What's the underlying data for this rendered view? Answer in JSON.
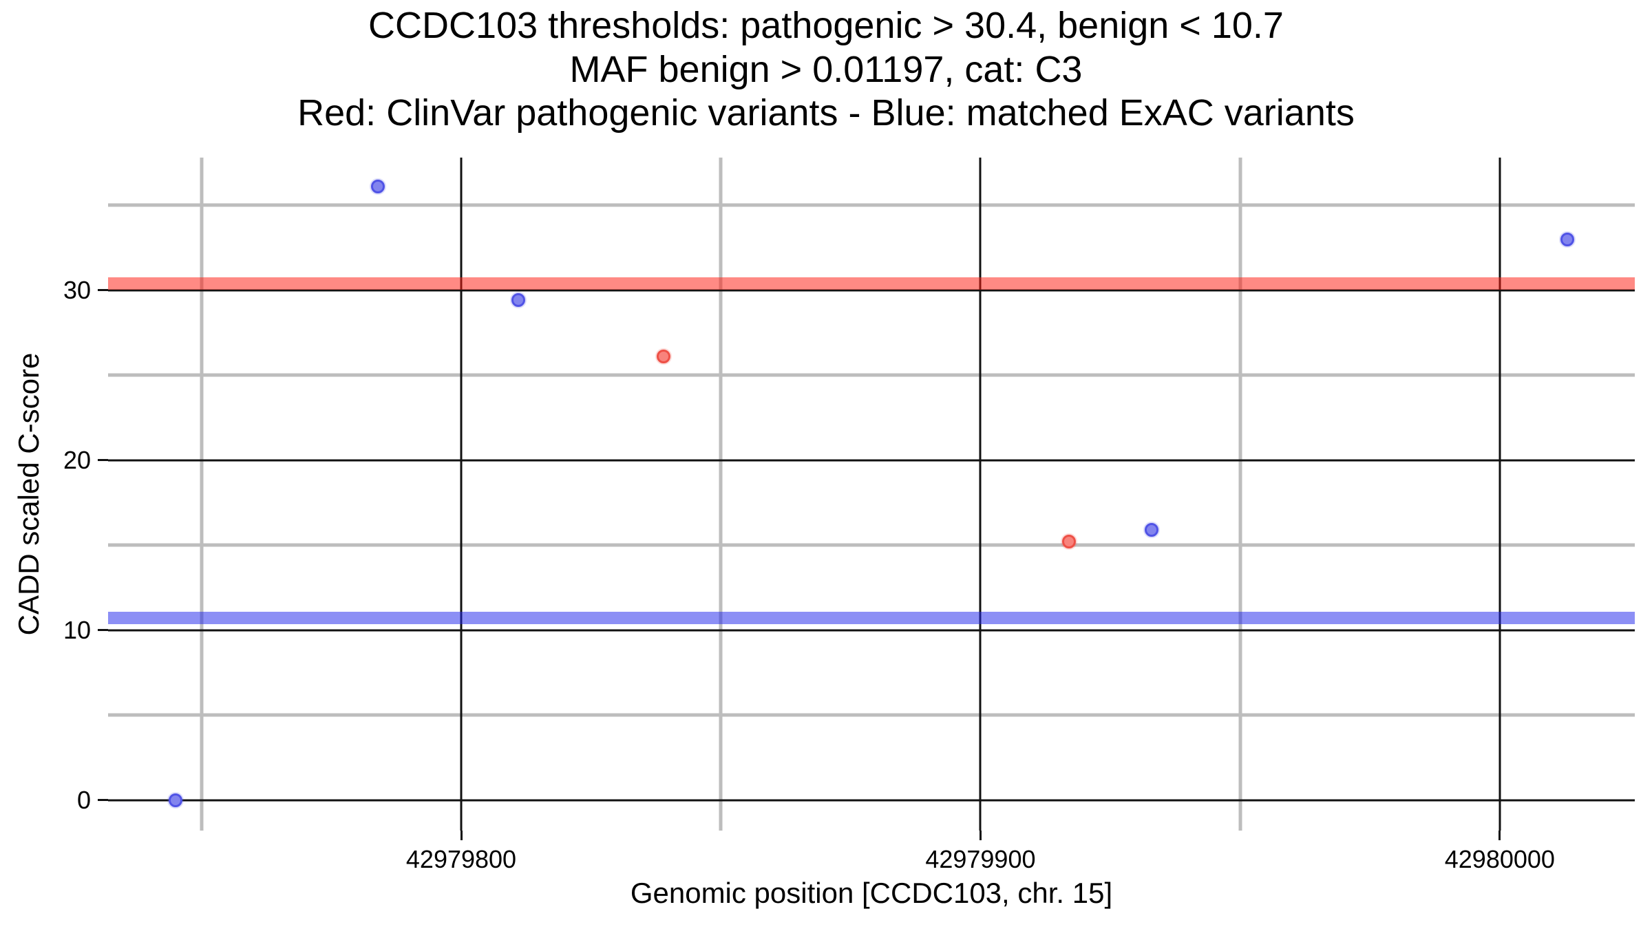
{
  "title": {
    "line1": "CCDC103 thresholds: pathogenic > 30.4, benign < 10.7",
    "line2": "MAF benign > 0.01197, cat: C3",
    "line3": "Red: ClinVar pathogenic variants - Blue: matched ExAC variants"
  },
  "axes": {
    "x_title": "Genomic position [CCDC103, chr. 15]",
    "y_title": "CADD scaled C-score"
  },
  "chart_data": {
    "type": "scatter",
    "title": "CCDC103 thresholds: pathogenic > 30.4, benign < 10.7\nMAF benign > 0.01197, cat: C3\nRed: ClinVar pathogenic variants - Blue: matched ExAC variants",
    "xlabel": "Genomic position [CCDC103, chr. 15]",
    "ylabel": "CADD scaled C-score",
    "xlim": [
      42979732,
      42980026
    ],
    "ylim": [
      -1.8,
      37.8
    ],
    "x_ticks": [
      {
        "value": 42979800,
        "label": "42979800"
      },
      {
        "value": 42979900,
        "label": "42979900"
      },
      {
        "value": 42980000,
        "label": "42980000"
      }
    ],
    "x_minor_ticks": [
      42979750,
      42979850,
      42979950
    ],
    "y_ticks": [
      {
        "value": 0,
        "label": "0"
      },
      {
        "value": 10,
        "label": "10"
      },
      {
        "value": 20,
        "label": "20"
      },
      {
        "value": 30,
        "label": "30"
      }
    ],
    "y_minor_ticks": [
      5,
      15,
      25,
      35
    ],
    "grid": {
      "major_color": "#111111",
      "minor_color": "#bdbdbd",
      "major_width": 3,
      "minor_width": 5
    },
    "legend": "none",
    "thresholds": [
      {
        "name": "pathogenic-threshold",
        "label": "pathogenic > 30.4",
        "y": 30.4,
        "color": "rgba(255,30,20,0.52)",
        "hex_on_white": "#fb7e76"
      },
      {
        "name": "benign-threshold",
        "label": "benign < 10.7",
        "y": 10.7,
        "color": "rgba(35,40,235,0.52)",
        "hex_on_white": "#8285f2"
      }
    ],
    "series": [
      {
        "name": "ClinVar pathogenic variants",
        "marker_fill": "#f8837c",
        "marker_edge": "#ee5046",
        "points": [
          {
            "x": 42979839,
            "y": 26.1
          },
          {
            "x": 42979917,
            "y": 15.2
          }
        ]
      },
      {
        "name": "matched ExAC variants",
        "marker_fill": "#8284ee",
        "marker_edge": "#5053e6",
        "points": [
          {
            "x": 42979745,
            "y": 0
          },
          {
            "x": 42979784,
            "y": 36.1
          },
          {
            "x": 42979811,
            "y": 29.4
          },
          {
            "x": 42979933,
            "y": 15.9
          },
          {
            "x": 42980013,
            "y": 33.0
          }
        ]
      }
    ]
  }
}
